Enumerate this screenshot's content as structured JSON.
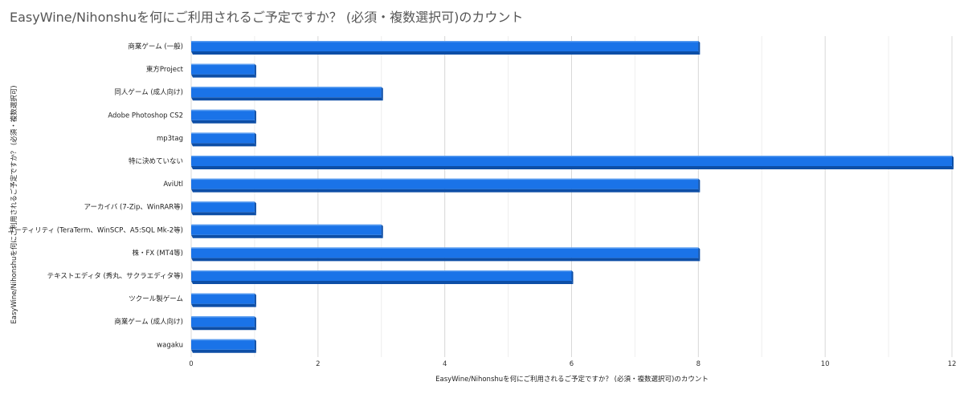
{
  "chart_data": {
    "type": "bar",
    "orientation": "horizontal",
    "style": "3d",
    "title": "EasyWine/Nihonshuを何にご利用されるご予定ですか？ (必須・複数選択可)のカウント",
    "xlabel": "EasyWine/Nihonshuを何にご利用されるご予定ですか？ (必須・複数選択可)のカウント",
    "ylabel": "EasyWine/Nihonshuを何にご利用されるご予定ですか？ (必須・複数選択可)",
    "xlim": [
      0,
      12
    ],
    "xticks": [
      "0",
      "2",
      "4",
      "6",
      "8",
      "10",
      "12"
    ],
    "grid": true,
    "legend": "none",
    "bar_color": "#1a73e8",
    "bar_side_color": "#0d4ea6",
    "categories": [
      "商業ゲーム (一般)",
      "東方Project",
      "同人ゲーム (成人向け)",
      "Adobe Photoshop CS2",
      "mp3tag",
      "特に決めていない",
      "AviUtl",
      "アーカイバ (7-Zip、WinRAR等)",
      "ユーティリティ (TeraTerm、WinSCP、A5:SQL Mk-2等)",
      "株・FX (MT4等)",
      "テキストエディタ (秀丸、サクラエディタ等)",
      "ツクール製ゲーム",
      "商業ゲーム (成人向け)",
      "wagaku"
    ],
    "values": [
      8,
      1,
      3,
      1,
      1,
      12,
      8,
      1,
      3,
      8,
      6,
      1,
      1,
      1
    ]
  }
}
